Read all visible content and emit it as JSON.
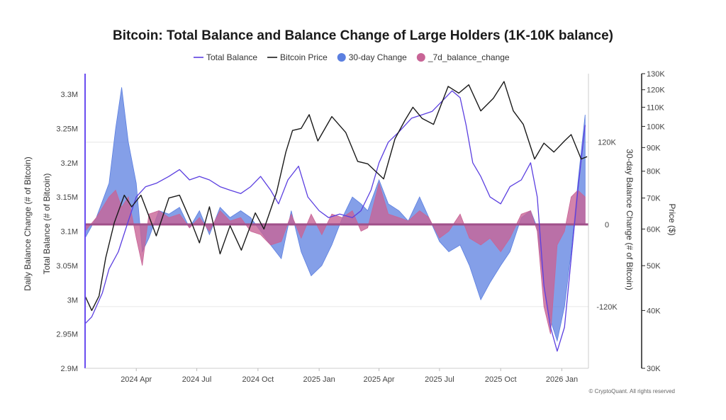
{
  "chart_data": {
    "type": "line",
    "title": "Bitcoin: Total Balance and Balance Change of Large Holders (1K-10K balance)",
    "left_axis_outer_label": "Daily Balance Change (# of Bitcoin)",
    "left_axis_label": "Total Balance (# of Bitcoin)",
    "right_axis_inner_label": "30-day Balance Change (# of Bitcoin)",
    "right_axis_outer_label": "Price ($)",
    "x_ticks": [
      "2024 Apr",
      "2024 Jul",
      "2024 Oct",
      "2025 Jan",
      "2025 Apr",
      "2025 Jul",
      "2025 Oct",
      "2026 Jan"
    ],
    "x_range": [
      "2024-01-15",
      "2026-02-10"
    ],
    "left_ticks": [
      "3.3M",
      "3.25M",
      "3.2M",
      "3.15M",
      "3.1M",
      "3.05M",
      "3M",
      "2.95M",
      "2.9M"
    ],
    "left_range": [
      2900000,
      3330000
    ],
    "right_inner_ticks": [
      "120K",
      "0",
      "-120K"
    ],
    "right_inner_range": [
      -210000,
      220000
    ],
    "price_ticks": [
      "130K",
      "120K",
      "110K",
      "100K",
      "90K",
      "80K",
      "70K",
      "60K",
      "50K",
      "40K",
      "30K"
    ],
    "price_scale": "log",
    "price_range": [
      30000,
      130000
    ],
    "legend": [
      {
        "label": "Total Balance",
        "marker": "line",
        "color": "#5b3fe0"
      },
      {
        "label": "Bitcoin Price",
        "marker": "line",
        "color": "#1a1a1a"
      },
      {
        "label": "30-day Change",
        "marker": "dot",
        "color": "#5b7fe0"
      },
      {
        "label": "_7d_balance_change",
        "marker": "dot",
        "color": "#c86496"
      }
    ],
    "series": [
      {
        "name": "Total Balance",
        "axis": "left",
        "color": "#5b3fe0",
        "points": [
          [
            "2024-01-15",
            2965000
          ],
          [
            "2024-01-25",
            2975000
          ],
          [
            "2024-02-10",
            3010000
          ],
          [
            "2024-02-20",
            3045000
          ],
          [
            "2024-03-05",
            3070000
          ],
          [
            "2024-03-20",
            3115000
          ],
          [
            "2024-04-01",
            3150000
          ],
          [
            "2024-04-15",
            3165000
          ],
          [
            "2024-05-01",
            3170000
          ],
          [
            "2024-05-20",
            3180000
          ],
          [
            "2024-06-05",
            3190000
          ],
          [
            "2024-06-20",
            3175000
          ],
          [
            "2024-07-05",
            3180000
          ],
          [
            "2024-07-20",
            3175000
          ],
          [
            "2024-08-05",
            3165000
          ],
          [
            "2024-08-20",
            3160000
          ],
          [
            "2024-09-05",
            3155000
          ],
          [
            "2024-09-20",
            3165000
          ],
          [
            "2024-10-05",
            3180000
          ],
          [
            "2024-10-20",
            3160000
          ],
          [
            "2024-11-01",
            3140000
          ],
          [
            "2024-11-15",
            3175000
          ],
          [
            "2024-12-01",
            3195000
          ],
          [
            "2024-12-15",
            3150000
          ],
          [
            "2025-01-01",
            3130000
          ],
          [
            "2025-01-15",
            3120000
          ],
          [
            "2025-02-01",
            3125000
          ],
          [
            "2025-02-20",
            3120000
          ],
          [
            "2025-03-05",
            3130000
          ],
          [
            "2025-03-20",
            3160000
          ],
          [
            "2025-04-01",
            3200000
          ],
          [
            "2025-04-15",
            3230000
          ],
          [
            "2025-05-01",
            3245000
          ],
          [
            "2025-05-20",
            3265000
          ],
          [
            "2025-06-05",
            3270000
          ],
          [
            "2025-06-20",
            3275000
          ],
          [
            "2025-07-05",
            3290000
          ],
          [
            "2025-07-20",
            3305000
          ],
          [
            "2025-08-01",
            3295000
          ],
          [
            "2025-08-10",
            3255000
          ],
          [
            "2025-08-20",
            3200000
          ],
          [
            "2025-09-01",
            3180000
          ],
          [
            "2025-09-15",
            3150000
          ],
          [
            "2025-10-01",
            3140000
          ],
          [
            "2025-10-15",
            3165000
          ],
          [
            "2025-11-01",
            3175000
          ],
          [
            "2025-11-15",
            3200000
          ],
          [
            "2025-11-25",
            3150000
          ],
          [
            "2025-12-05",
            3020000
          ],
          [
            "2025-12-15",
            2960000
          ],
          [
            "2025-12-25",
            2925000
          ],
          [
            "2026-01-05",
            2960000
          ],
          [
            "2026-01-15",
            3060000
          ],
          [
            "2026-01-25",
            3160000
          ],
          [
            "2026-02-05",
            3255000
          ]
        ]
      },
      {
        "name": "Bitcoin Price",
        "axis": "price",
        "color": "#1a1a1a",
        "points": [
          [
            "2024-01-15",
            43000
          ],
          [
            "2024-01-25",
            40000
          ],
          [
            "2024-02-05",
            43000
          ],
          [
            "2024-02-15",
            52000
          ],
          [
            "2024-02-28",
            62000
          ],
          [
            "2024-03-14",
            71000
          ],
          [
            "2024-03-25",
            67000
          ],
          [
            "2024-04-08",
            71000
          ],
          [
            "2024-04-20",
            64000
          ],
          [
            "2024-05-01",
            58000
          ],
          [
            "2024-05-20",
            70000
          ],
          [
            "2024-06-05",
            71000
          ],
          [
            "2024-06-25",
            61000
          ],
          [
            "2024-07-05",
            56000
          ],
          [
            "2024-07-20",
            67000
          ],
          [
            "2024-08-05",
            53000
          ],
          [
            "2024-08-20",
            61000
          ],
          [
            "2024-09-06",
            54000
          ],
          [
            "2024-09-27",
            65000
          ],
          [
            "2024-10-10",
            60000
          ],
          [
            "2024-10-29",
            72000
          ],
          [
            "2024-11-12",
            88000
          ],
          [
            "2024-11-22",
            98000
          ],
          [
            "2024-12-05",
            99000
          ],
          [
            "2024-12-17",
            106000
          ],
          [
            "2024-12-30",
            93000
          ],
          [
            "2025-01-20",
            105000
          ],
          [
            "2025-02-10",
            97000
          ],
          [
            "2025-02-28",
            84000
          ],
          [
            "2025-03-15",
            83000
          ],
          [
            "2025-04-08",
            77000
          ],
          [
            "2025-04-25",
            94000
          ],
          [
            "2025-05-10",
            103000
          ],
          [
            "2025-05-22",
            110000
          ],
          [
            "2025-06-05",
            104000
          ],
          [
            "2025-06-22",
            101000
          ],
          [
            "2025-07-14",
            122000
          ],
          [
            "2025-07-30",
            118000
          ],
          [
            "2025-08-14",
            123000
          ],
          [
            "2025-09-01",
            108000
          ],
          [
            "2025-09-20",
            115000
          ],
          [
            "2025-10-06",
            125000
          ],
          [
            "2025-10-20",
            108000
          ],
          [
            "2025-11-04",
            101000
          ],
          [
            "2025-11-21",
            85000
          ],
          [
            "2025-12-05",
            92000
          ],
          [
            "2025-12-20",
            88000
          ],
          [
            "2026-01-05",
            93000
          ],
          [
            "2026-01-15",
            96000
          ],
          [
            "2026-01-30",
            85000
          ],
          [
            "2026-02-08",
            86000
          ]
        ]
      },
      {
        "name": "30-day Change",
        "axis": "right",
        "color": "#5b7fe0",
        "points": [
          [
            "2024-01-15",
            -20000
          ],
          [
            "2024-02-01",
            10000
          ],
          [
            "2024-02-20",
            60000
          ],
          [
            "2024-03-01",
            140000
          ],
          [
            "2024-03-10",
            200000
          ],
          [
            "2024-03-20",
            120000
          ],
          [
            "2024-04-01",
            60000
          ],
          [
            "2024-04-10",
            -40000
          ],
          [
            "2024-04-20",
            -20000
          ],
          [
            "2024-05-05",
            20000
          ],
          [
            "2024-05-20",
            15000
          ],
          [
            "2024-06-05",
            25000
          ],
          [
            "2024-06-20",
            -5000
          ],
          [
            "2024-07-05",
            20000
          ],
          [
            "2024-07-20",
            -15000
          ],
          [
            "2024-08-05",
            25000
          ],
          [
            "2024-08-20",
            10000
          ],
          [
            "2024-09-05",
            20000
          ],
          [
            "2024-09-20",
            10000
          ],
          [
            "2024-10-05",
            -10000
          ],
          [
            "2024-10-20",
            -30000
          ],
          [
            "2024-11-05",
            -50000
          ],
          [
            "2024-11-20",
            20000
          ],
          [
            "2024-12-05",
            -40000
          ],
          [
            "2024-12-20",
            -75000
          ],
          [
            "2025-01-05",
            -60000
          ],
          [
            "2025-01-20",
            -30000
          ],
          [
            "2025-02-05",
            10000
          ],
          [
            "2025-02-20",
            40000
          ],
          [
            "2025-03-05",
            30000
          ],
          [
            "2025-03-15",
            20000
          ],
          [
            "2025-04-01",
            65000
          ],
          [
            "2025-04-15",
            30000
          ],
          [
            "2025-05-01",
            20000
          ],
          [
            "2025-05-15",
            5000
          ],
          [
            "2025-06-01",
            40000
          ],
          [
            "2025-06-15",
            10000
          ],
          [
            "2025-07-01",
            -25000
          ],
          [
            "2025-07-15",
            -40000
          ],
          [
            "2025-08-01",
            -30000
          ],
          [
            "2025-08-15",
            -60000
          ],
          [
            "2025-09-01",
            -110000
          ],
          [
            "2025-09-15",
            -85000
          ],
          [
            "2025-10-01",
            -60000
          ],
          [
            "2025-10-15",
            -40000
          ],
          [
            "2025-11-01",
            10000
          ],
          [
            "2025-11-15",
            20000
          ],
          [
            "2025-11-25",
            -5000
          ],
          [
            "2025-12-05",
            -90000
          ],
          [
            "2025-12-15",
            -140000
          ],
          [
            "2025-12-25",
            -170000
          ],
          [
            "2026-01-05",
            -120000
          ],
          [
            "2026-01-15",
            -40000
          ],
          [
            "2026-01-25",
            60000
          ],
          [
            "2026-02-05",
            160000
          ]
        ]
      },
      {
        "name": "_7d_balance_change",
        "axis": "right",
        "color": "#c86496",
        "points": [
          [
            "2024-01-15",
            -10000
          ],
          [
            "2024-02-01",
            10000
          ],
          [
            "2024-02-20",
            40000
          ],
          [
            "2024-03-01",
            50000
          ],
          [
            "2024-03-10",
            25000
          ],
          [
            "2024-03-20",
            40000
          ],
          [
            "2024-04-01",
            -20000
          ],
          [
            "2024-04-10",
            -60000
          ],
          [
            "2024-04-20",
            15000
          ],
          [
            "2024-05-05",
            20000
          ],
          [
            "2024-05-20",
            10000
          ],
          [
            "2024-06-05",
            15000
          ],
          [
            "2024-06-20",
            -5000
          ],
          [
            "2024-07-05",
            10000
          ],
          [
            "2024-07-20",
            -10000
          ],
          [
            "2024-08-05",
            20000
          ],
          [
            "2024-08-20",
            5000
          ],
          [
            "2024-09-05",
            10000
          ],
          [
            "2024-09-20",
            -10000
          ],
          [
            "2024-10-05",
            -15000
          ],
          [
            "2024-10-20",
            -30000
          ],
          [
            "2024-11-05",
            -25000
          ],
          [
            "2024-11-20",
            15000
          ],
          [
            "2024-12-05",
            -20000
          ],
          [
            "2024-12-20",
            15000
          ],
          [
            "2025-01-05",
            -15000
          ],
          [
            "2025-01-20",
            15000
          ],
          [
            "2025-02-05",
            10000
          ],
          [
            "2025-02-20",
            20000
          ],
          [
            "2025-03-05",
            -10000
          ],
          [
            "2025-03-15",
            -5000
          ],
          [
            "2025-04-01",
            60000
          ],
          [
            "2025-04-15",
            15000
          ],
          [
            "2025-05-01",
            10000
          ],
          [
            "2025-05-15",
            5000
          ],
          [
            "2025-06-01",
            20000
          ],
          [
            "2025-06-15",
            10000
          ],
          [
            "2025-07-01",
            -20000
          ],
          [
            "2025-07-15",
            -10000
          ],
          [
            "2025-08-01",
            15000
          ],
          [
            "2025-08-15",
            -20000
          ],
          [
            "2025-09-01",
            -30000
          ],
          [
            "2025-09-15",
            -20000
          ],
          [
            "2025-10-01",
            -40000
          ],
          [
            "2025-10-15",
            -20000
          ],
          [
            "2025-11-01",
            15000
          ],
          [
            "2025-11-15",
            20000
          ],
          [
            "2025-11-25",
            -10000
          ],
          [
            "2025-12-05",
            -120000
          ],
          [
            "2025-12-15",
            -160000
          ],
          [
            "2025-12-25",
            -30000
          ],
          [
            "2026-01-05",
            -10000
          ],
          [
            "2026-01-15",
            40000
          ],
          [
            "2026-01-25",
            50000
          ],
          [
            "2026-02-05",
            40000
          ]
        ]
      }
    ],
    "copyright": "© CryptoQuant. All rights reserved"
  }
}
